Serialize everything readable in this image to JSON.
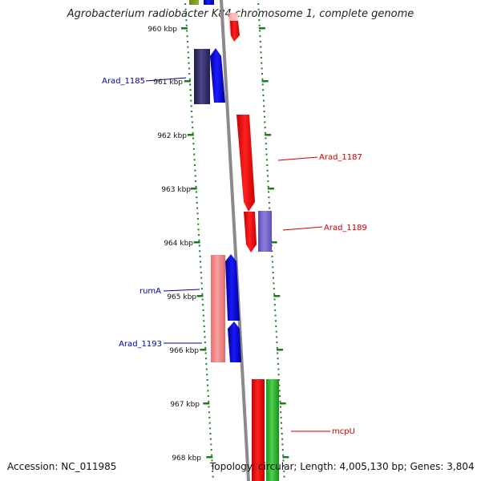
{
  "title": "Agrobacterium radiobacter K84 chromosome 1, complete genome",
  "footer": {
    "accession": "Accession: NC_011985",
    "summary": "Topology: circular; Length: 4,005,130 bp; Genes: 3,804"
  },
  "colors": {
    "backbone": "#8a8a8a",
    "tick": "#1f7a1f",
    "forward_gene": "#0000ff",
    "reverse_gene": "#ff0000",
    "label_forward": "#0000aa",
    "label_reverse": "#cc0000"
  },
  "kbp_ticks": [
    {
      "kbp": 960,
      "label": "960 kbp"
    },
    {
      "kbp": 961,
      "label": "961 kbp"
    },
    {
      "kbp": 962,
      "label": "962 kbp"
    },
    {
      "kbp": 963,
      "label": "963 kbp"
    },
    {
      "kbp": 964,
      "label": "964 kbp"
    },
    {
      "kbp": 965,
      "label": "965 kbp"
    },
    {
      "kbp": 966,
      "label": "966 kbp"
    },
    {
      "kbp": 967,
      "label": "967 kbp"
    },
    {
      "kbp": 968,
      "label": "968 kbp"
    }
  ],
  "gene_labels": [
    {
      "text": "Arad_1185",
      "strand": "forward"
    },
    {
      "text": "Arad_1187",
      "strand": "reverse"
    },
    {
      "text": "Arad_1189",
      "strand": "reverse"
    },
    {
      "text": "rumA",
      "strand": "forward"
    },
    {
      "text": "Arad_1193",
      "strand": "forward"
    },
    {
      "text": "mcpU",
      "strand": "reverse"
    }
  ]
}
